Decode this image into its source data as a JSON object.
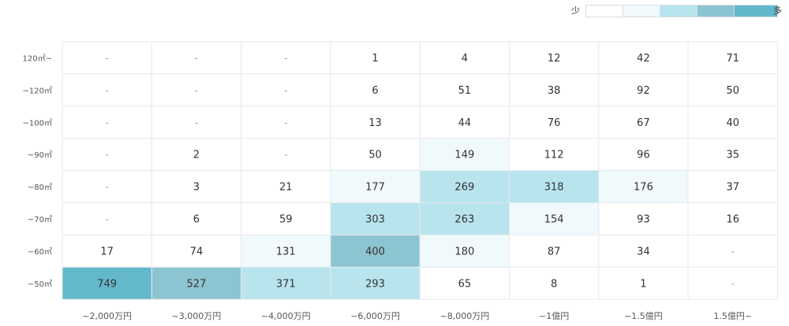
{
  "legend": {
    "low_label": "少",
    "high_label": "多",
    "colors": [
      "#ffffff",
      "#f0fafd",
      "#b8e4ee",
      "#8dc4d1",
      "#63b8cc"
    ]
  },
  "chart_data": {
    "type": "heatmap",
    "rows": [
      "120㎡~",
      "~120㎡",
      "~100㎡",
      "~90㎡",
      "~80㎡",
      "~70㎡",
      "~60㎡",
      "~50㎡"
    ],
    "columns": [
      "~2,000万円",
      "~3,000万円",
      "~4,000万円",
      "~6,000万円",
      "~8,000万円",
      "~1億円",
      "~1.5億円",
      "1.5億円~"
    ],
    "values": [
      [
        null,
        null,
        null,
        1,
        4,
        12,
        42,
        71
      ],
      [
        null,
        null,
        null,
        6,
        51,
        38,
        92,
        50
      ],
      [
        null,
        null,
        null,
        13,
        44,
        76,
        67,
        40
      ],
      [
        null,
        2,
        null,
        50,
        149,
        112,
        96,
        35
      ],
      [
        null,
        3,
        21,
        177,
        269,
        318,
        176,
        37
      ],
      [
        null,
        6,
        59,
        303,
        263,
        154,
        93,
        16
      ],
      [
        17,
        74,
        131,
        400,
        180,
        87,
        34,
        null
      ],
      [
        749,
        527,
        371,
        293,
        65,
        8,
        1,
        null
      ]
    ],
    "empty_symbol": "-",
    "color_bins": [
      0,
      130,
      200,
      380,
      700
    ]
  }
}
